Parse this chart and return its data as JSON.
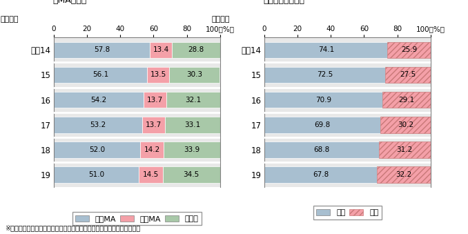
{
  "left_title": "『MA区域』",
  "right_title": "『都道府県単位』",
  "year_label": "（年度）",
  "years": [
    "平成14",
    "15",
    "16",
    "17",
    "18",
    "19"
  ],
  "left_keys": [
    "同一MA",
    "隣接MA",
    "その他"
  ],
  "right_keys": [
    "県内",
    "県外"
  ],
  "left_data": [
    [
      57.8,
      56.1,
      54.2,
      53.2,
      52.0,
      51.0
    ],
    [
      13.4,
      13.5,
      13.7,
      13.7,
      14.2,
      14.5
    ],
    [
      28.8,
      30.3,
      32.1,
      33.1,
      33.9,
      34.5
    ]
  ],
  "right_data": [
    [
      74.1,
      72.5,
      70.9,
      69.8,
      68.8,
      67.8
    ],
    [
      25.9,
      27.5,
      29.1,
      30.2,
      31.2,
      32.2
    ]
  ],
  "left_colors": [
    "#a8bfd0",
    "#f4a0a8",
    "#a8c8a8"
  ],
  "right_colors": [
    "#a8bfd0",
    "#f4a0a8"
  ],
  "left_hatch": [
    null,
    null,
    null
  ],
  "right_hatch": [
    null,
    "////"
  ],
  "note": "※　過去の数値については、データを精査した結果を踏まえ修正している",
  "bar_height": 0.65,
  "bg_color": "#e8e8e8",
  "bar_gap_color": "#ffffff"
}
